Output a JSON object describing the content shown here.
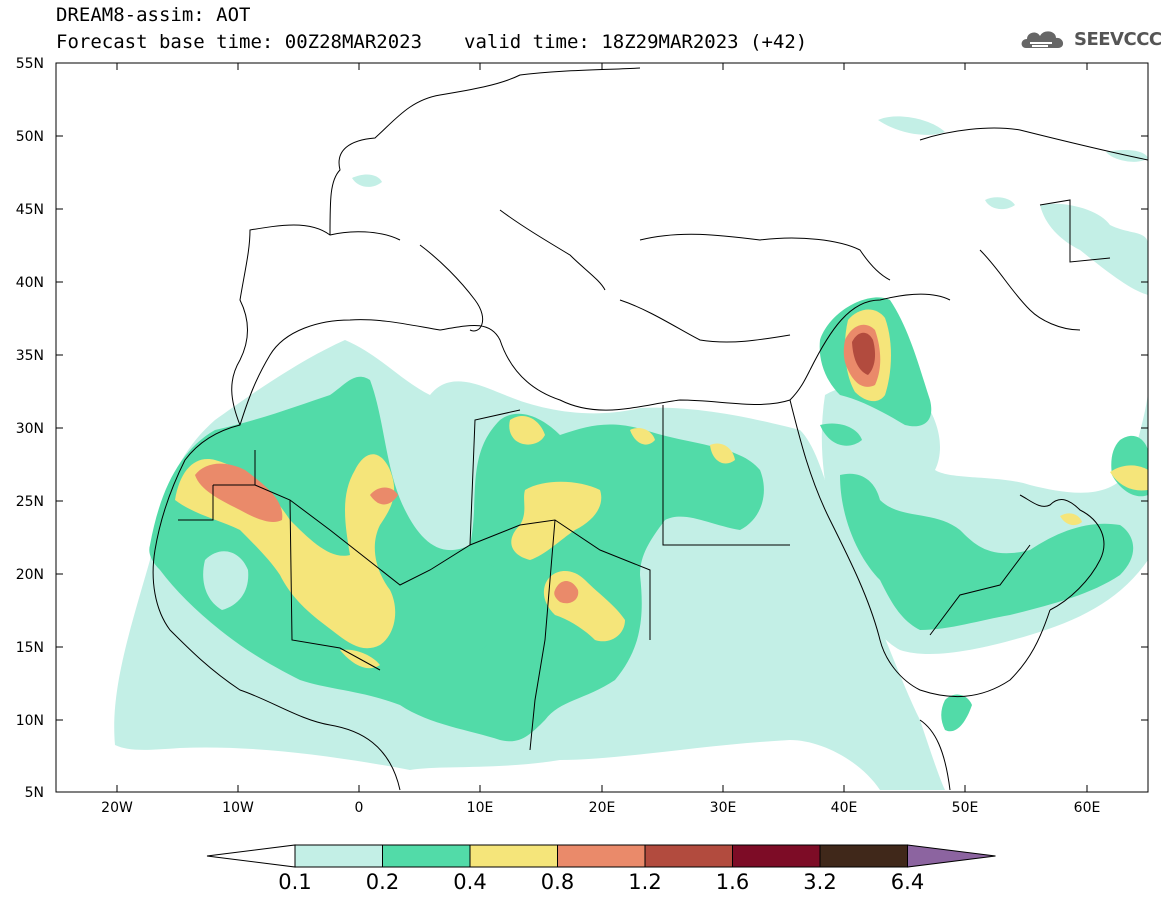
{
  "header": {
    "title": "DREAM8-assim: AOT",
    "base_time": "Forecast base time: 00Z28MAR2023",
    "valid_time": "valid time: 18Z29MAR2023 (+42)"
  },
  "logo": {
    "text": "SEEVCCC",
    "icon": "cloud-icon"
  },
  "map": {
    "lon_range": [
      -25,
      65
    ],
    "lat_range": [
      5,
      55
    ],
    "lat_ticks": [
      "55N",
      "50N",
      "45N",
      "40N",
      "35N",
      "30N",
      "25N",
      "20N",
      "15N",
      "10N",
      "5N"
    ],
    "lon_ticks": [
      "20W",
      "10W",
      "0",
      "10E",
      "20E",
      "30E",
      "40E",
      "50E",
      "60E"
    ],
    "grid": false
  },
  "colorbar": {
    "labels": [
      "0.1",
      "0.2",
      "0.4",
      "0.8",
      "1.2",
      "1.6",
      "3.2",
      "6.4"
    ],
    "colors": [
      "#ffffff",
      "#c3efe6",
      "#52dba8",
      "#f5e57a",
      "#ea8a6a",
      "#b24b3e",
      "#7d0c26",
      "#40281a",
      "#8c64a0"
    ]
  }
}
